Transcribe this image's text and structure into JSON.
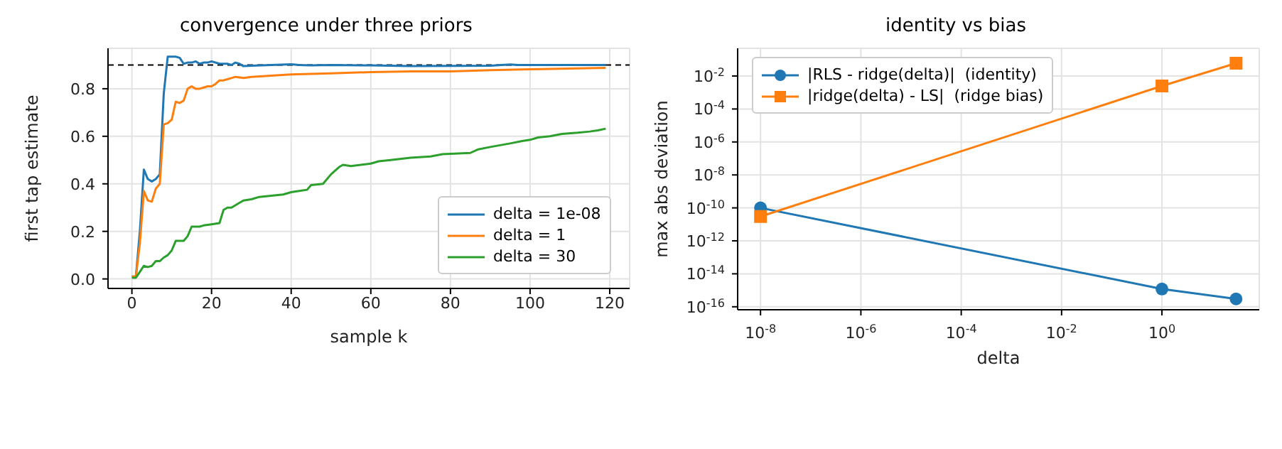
{
  "chart_data": [
    {
      "type": "line",
      "title": "convergence under three priors",
      "xlabel": "sample k",
      "ylabel": "first tap estimate",
      "xlim": [
        -6,
        125
      ],
      "ylim": [
        -0.04,
        0.97
      ],
      "xticks": [
        0,
        20,
        40,
        60,
        80,
        100,
        120
      ],
      "yticks": [
        {
          "value": 0,
          "label": "0.0"
        },
        0.2,
        0.4,
        0.6,
        0.8
      ],
      "grid": true,
      "legend": "bottom right",
      "marker": "none",
      "line_style": "solid",
      "ref_lines": [
        {
          "axis": "y",
          "value": 0.9,
          "color": "#000000",
          "line_style": "dashed"
        }
      ],
      "series": [
        {
          "name": "delta = 1e-08",
          "color": "#1f77b4",
          "x": [
            0,
            1,
            2,
            3,
            4,
            5,
            6,
            7,
            8,
            9,
            10,
            11,
            12,
            13,
            14,
            15,
            16,
            17,
            18,
            19,
            20,
            22,
            24,
            25,
            26,
            27,
            28,
            30,
            35,
            40,
            42,
            45,
            50,
            60,
            70,
            80,
            90,
            95,
            97,
            100,
            110,
            119
          ],
          "values": [
            0.01,
            0.01,
            0.2,
            0.46,
            0.42,
            0.41,
            0.42,
            0.44,
            0.78,
            0.935,
            0.935,
            0.935,
            0.93,
            0.905,
            0.91,
            0.91,
            0.915,
            0.905,
            0.91,
            0.91,
            0.915,
            0.905,
            0.905,
            0.9,
            0.91,
            0.905,
            0.895,
            0.897,
            0.9,
            0.903,
            0.9,
            0.898,
            0.9,
            0.898,
            0.895,
            0.896,
            0.897,
            0.902,
            0.9,
            0.9,
            0.9,
            0.9
          ]
        },
        {
          "name": "delta = 1",
          "color": "#ff7f0e",
          "x": [
            0,
            1,
            2,
            3,
            4,
            5,
            6,
            7,
            8,
            9,
            10,
            11,
            12,
            13,
            14,
            15,
            16,
            17,
            18,
            19,
            20,
            21,
            22,
            23,
            24,
            25,
            26,
            28,
            30,
            40,
            50,
            60,
            70,
            80,
            90,
            100,
            110,
            119
          ],
          "values": [
            0.01,
            0.01,
            0.15,
            0.37,
            0.33,
            0.325,
            0.38,
            0.4,
            0.65,
            0.655,
            0.67,
            0.745,
            0.74,
            0.75,
            0.8,
            0.81,
            0.8,
            0.8,
            0.805,
            0.81,
            0.81,
            0.82,
            0.835,
            0.835,
            0.84,
            0.845,
            0.85,
            0.845,
            0.85,
            0.86,
            0.865,
            0.87,
            0.873,
            0.873,
            0.878,
            0.882,
            0.885,
            0.888
          ]
        },
        {
          "name": "delta = 30",
          "color": "#2ca02c",
          "x": [
            0,
            1,
            2,
            3,
            4,
            5,
            6,
            7,
            8,
            9,
            10,
            11,
            12,
            13,
            14,
            15,
            16,
            17,
            18,
            20,
            22,
            23,
            24,
            25,
            27,
            28,
            30,
            32,
            35,
            38,
            40,
            42,
            44,
            45,
            48,
            50,
            52,
            53,
            55,
            60,
            62,
            65,
            70,
            75,
            78,
            85,
            87,
            90,
            95,
            98,
            100,
            102,
            105,
            108,
            112,
            115,
            117,
            119
          ],
          "values": [
            0.005,
            0.005,
            0.03,
            0.055,
            0.05,
            0.055,
            0.075,
            0.075,
            0.09,
            0.1,
            0.12,
            0.16,
            0.16,
            0.16,
            0.18,
            0.22,
            0.22,
            0.22,
            0.225,
            0.23,
            0.235,
            0.29,
            0.3,
            0.3,
            0.32,
            0.33,
            0.335,
            0.345,
            0.35,
            0.355,
            0.365,
            0.37,
            0.375,
            0.395,
            0.4,
            0.44,
            0.47,
            0.48,
            0.475,
            0.485,
            0.495,
            0.5,
            0.51,
            0.515,
            0.525,
            0.53,
            0.545,
            0.555,
            0.57,
            0.58,
            0.585,
            0.595,
            0.6,
            0.61,
            0.615,
            0.62,
            0.625,
            0.632
          ]
        }
      ]
    },
    {
      "type": "line",
      "title": "identity vs bias",
      "xlabel": "delta",
      "ylabel": "max abs deviation",
      "log": "xy",
      "xlim": [
        3.5e-09,
        87
      ],
      "ylim": [
        6.6e-17,
        0.48
      ],
      "xticks": [
        {
          "value": 1e-08,
          "label": "10$^{-8}$"
        },
        {
          "value": 1e-06,
          "label": "10$^{-6}$"
        },
        {
          "value": 0.0001,
          "label": "10$^{-4}$"
        },
        {
          "value": 0.01,
          "label": "10$^{-2}$"
        },
        {
          "value": 1,
          "label": "10$^{0}$"
        }
      ],
      "yticks": [
        {
          "value": 1e-16,
          "label": "10$^{-16}$"
        },
        {
          "value": 1e-14,
          "label": "10$^{-14}$"
        },
        {
          "value": 1e-12,
          "label": "10$^{-12}$"
        },
        {
          "value": 1e-10,
          "label": "10$^{-10}$"
        },
        {
          "value": 1e-08,
          "label": "10$^{-8}$"
        },
        {
          "value": 1e-06,
          "label": "10$^{-6}$"
        },
        {
          "value": 0.0001,
          "label": "10$^{-4}$"
        },
        {
          "value": 0.01,
          "label": "10$^{-2}$"
        }
      ],
      "grid": true,
      "legend": "top left",
      "line_style": "solid",
      "series": [
        {
          "name": "|RLS - ridge(delta)|  (identity)",
          "color": "#1f77b4",
          "marker": "circle",
          "x": [
            1e-08,
            1,
            30
          ],
          "values": [
            1e-10,
            1.2e-15,
            3e-16
          ]
        },
        {
          "name": "|ridge(delta) - LS|  (ridge bias)",
          "color": "#ff7f0e",
          "marker": "square",
          "x": [
            1e-08,
            1,
            30
          ],
          "values": [
            3e-11,
            0.0025,
            0.06
          ]
        }
      ]
    }
  ]
}
